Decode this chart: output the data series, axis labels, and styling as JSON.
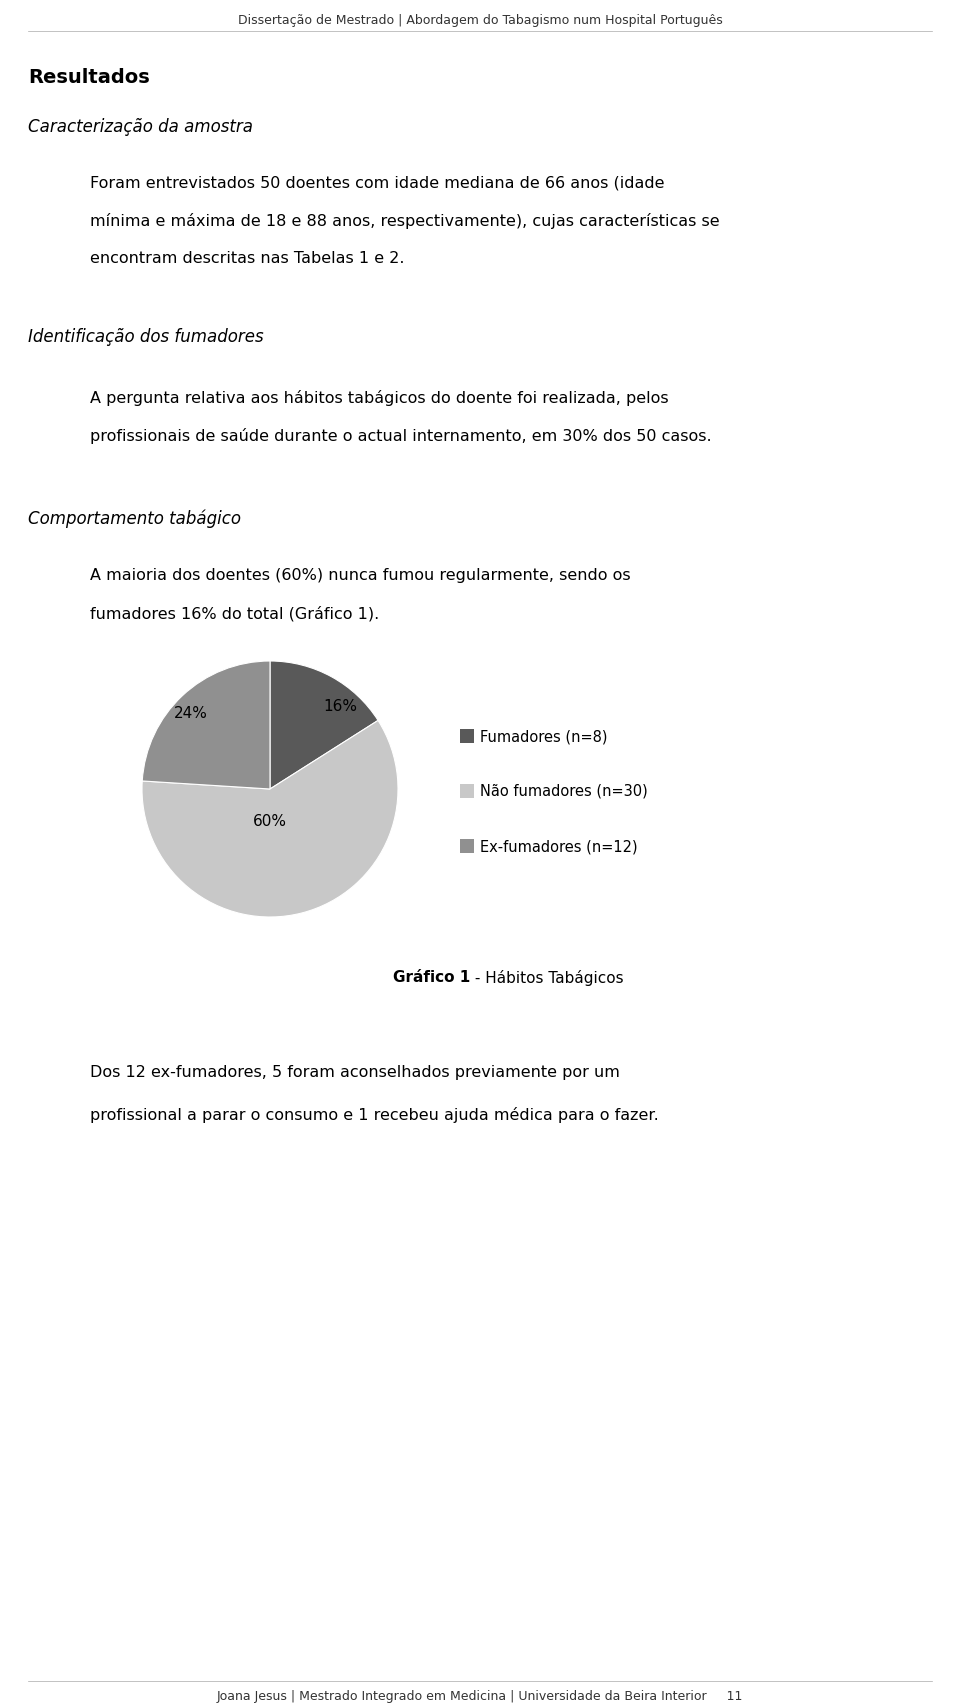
{
  "header": "Dissertação de Mestrado | Abordagem do Tabagismo num Hospital Português",
  "footer": "Joana Jesus | Mestrado Integrado em Medicina | Universidade da Beira Interior     11",
  "section_resultados": "Resultados",
  "section_caract": "Caracterização da amostra",
  "para1_lines": [
    "Foram entrevistados 50 doentes com idade mediana de 66 anos (idade",
    "mínima e máxima de 18 e 88 anos, respectivamente), cujas características se",
    "encontram descritas nas Tabelas 1 e 2."
  ],
  "section_identif": "Identificação dos fumadores",
  "para2_lines": [
    "A pergunta relativa aos hábitos tabágicos do doente foi realizada, pelos",
    "profissionais de saúde durante o actual internamento, em 30% dos 50 casos."
  ],
  "section_comport": "Comportamento tabágico",
  "para3_lines": [
    "A maioria dos doentes (60%) nunca fumou regularmente, sendo os",
    "fumadores 16% do total (Gráfico 1)."
  ],
  "pie_values": [
    16,
    60,
    24
  ],
  "pie_labels_pct": [
    "16%",
    "60%",
    "24%"
  ],
  "pie_colors": [
    "#595959",
    "#c8c8c8",
    "#909090"
  ],
  "legend_labels": [
    "Fumadores (n=8)",
    "Não fumadores (n=30)",
    "Ex-fumadores (n=12)"
  ],
  "legend_colors": [
    "#595959",
    "#c8c8c8",
    "#909090"
  ],
  "chart_caption_bold": "Gráfico 1",
  "chart_caption_rest": " - Hábitos Tabágicos",
  "para4_lines": [
    "Dos 12 ex-fumadores, 5 foram aconselhados previamente por um",
    "profissional a parar o consumo e 1 recebeu ajuda médica para o fazer."
  ],
  "background_color": "#ffffff",
  "text_color": "#000000",
  "fig_width": 9.6,
  "fig_height": 17.08,
  "dpi": 100
}
